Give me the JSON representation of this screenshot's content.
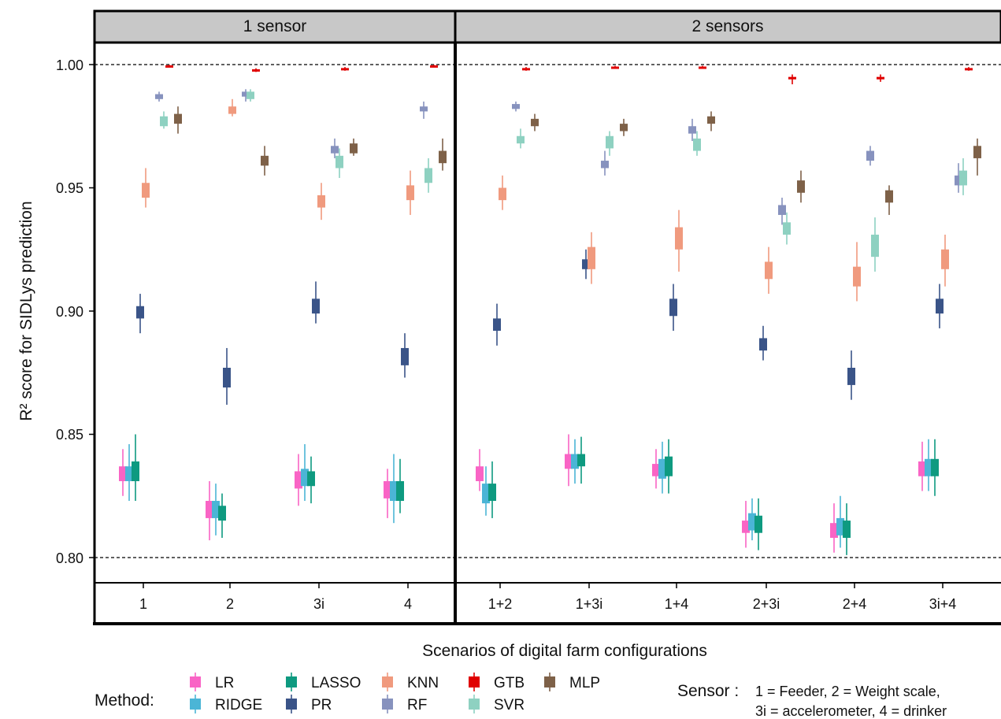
{
  "chart_data": {
    "type": "boxplot",
    "ylabel": "R² score for SIDLys prediction",
    "xlabel": "Scenarios of digital farm configurations",
    "ylim": [
      0.79,
      1.01
    ],
    "yticks": [
      "0.80",
      "0.85",
      "0.90",
      "0.95",
      "1.00"
    ],
    "reference_lines": [
      0.8,
      1.0
    ],
    "panels": [
      {
        "title": "1 sensor",
        "categories": [
          "1",
          "2",
          "3i",
          "4"
        ]
      },
      {
        "title": "2 sensors",
        "categories": [
          "1+2",
          "1+3i",
          "1+4",
          "2+3i",
          "2+4",
          "3i+4"
        ]
      }
    ],
    "methods": [
      {
        "name": "LR",
        "color": "#F964C5"
      },
      {
        "name": "RIDGE",
        "color": "#4BB5D6"
      },
      {
        "name": "LASSO",
        "color": "#0E9A80"
      },
      {
        "name": "PR",
        "color": "#3A5488"
      },
      {
        "name": "KNN",
        "color": "#F09A7E"
      },
      {
        "name": "RF",
        "color": "#8792BE"
      },
      {
        "name": "GTB",
        "color": "#E00000"
      },
      {
        "name": "SVR",
        "color": "#8ED1C1"
      },
      {
        "name": "MLP",
        "color": "#7E6148"
      }
    ],
    "series": {
      "LR": [
        [
          0.825,
          0.831,
          0.834,
          0.837,
          0.844
        ],
        [
          0.807,
          0.816,
          0.819,
          0.823,
          0.831
        ],
        [
          0.821,
          0.828,
          0.832,
          0.835,
          0.842
        ],
        [
          0.816,
          0.824,
          0.827,
          0.831,
          0.836
        ],
        [
          0.827,
          0.831,
          0.834,
          0.837,
          0.844
        ],
        [
          0.829,
          0.836,
          0.839,
          0.842,
          0.85
        ],
        [
          0.828,
          0.833,
          0.836,
          0.838,
          0.844
        ],
        [
          0.804,
          0.81,
          0.813,
          0.815,
          0.823
        ],
        [
          0.802,
          0.808,
          0.811,
          0.814,
          0.822
        ],
        [
          0.827,
          0.833,
          0.836,
          0.839,
          0.847
        ]
      ],
      "RIDGE": [
        [
          0.823,
          0.831,
          0.834,
          0.837,
          0.846
        ],
        [
          0.809,
          0.816,
          0.819,
          0.823,
          0.83
        ],
        [
          0.823,
          0.829,
          0.832,
          0.836,
          0.846
        ],
        [
          0.814,
          0.823,
          0.827,
          0.831,
          0.842
        ],
        [
          0.817,
          0.822,
          0.826,
          0.83,
          0.837
        ],
        [
          0.83,
          0.836,
          0.839,
          0.842,
          0.848
        ],
        [
          0.826,
          0.832,
          0.836,
          0.84,
          0.847
        ],
        [
          0.807,
          0.811,
          0.814,
          0.818,
          0.824
        ],
        [
          0.804,
          0.809,
          0.812,
          0.816,
          0.825
        ],
        [
          0.827,
          0.833,
          0.836,
          0.84,
          0.848
        ]
      ],
      "LASSO": [
        [
          0.823,
          0.831,
          0.834,
          0.839,
          0.85
        ],
        [
          0.808,
          0.815,
          0.819,
          0.821,
          0.826
        ],
        [
          0.822,
          0.829,
          0.832,
          0.835,
          0.841
        ],
        [
          0.818,
          0.823,
          0.827,
          0.831,
          0.84
        ],
        [
          0.816,
          0.823,
          0.826,
          0.83,
          0.839
        ],
        [
          0.83,
          0.837,
          0.839,
          0.842,
          0.849
        ],
        [
          0.826,
          0.833,
          0.836,
          0.841,
          0.848
        ],
        [
          0.803,
          0.81,
          0.813,
          0.817,
          0.824
        ],
        [
          0.801,
          0.808,
          0.811,
          0.815,
          0.822
        ],
        [
          0.825,
          0.833,
          0.836,
          0.84,
          0.848
        ]
      ],
      "PR": [
        [
          0.891,
          0.897,
          0.899,
          0.902,
          0.907
        ],
        [
          0.862,
          0.869,
          0.873,
          0.877,
          0.885
        ],
        [
          0.895,
          0.899,
          0.902,
          0.905,
          0.912
        ],
        [
          0.873,
          0.878,
          0.881,
          0.885,
          0.891
        ],
        [
          0.886,
          0.892,
          0.895,
          0.897,
          0.903
        ],
        [
          0.913,
          0.917,
          0.919,
          0.921,
          0.925
        ],
        [
          0.892,
          0.898,
          0.901,
          0.905,
          0.911
        ],
        [
          0.88,
          0.884,
          0.886,
          0.889,
          0.894
        ],
        [
          0.864,
          0.87,
          0.873,
          0.877,
          0.884
        ],
        [
          0.893,
          0.899,
          0.902,
          0.905,
          0.911
        ]
      ],
      "KNN": [
        [
          0.942,
          0.946,
          0.949,
          0.952,
          0.958
        ],
        [
          0.979,
          0.98,
          0.981,
          0.983,
          0.986
        ],
        [
          0.937,
          0.942,
          0.944,
          0.947,
          0.952
        ],
        [
          0.939,
          0.945,
          0.948,
          0.951,
          0.957
        ],
        [
          0.941,
          0.945,
          0.947,
          0.95,
          0.955
        ],
        [
          0.911,
          0.917,
          0.921,
          0.926,
          0.932
        ],
        [
          0.916,
          0.925,
          0.929,
          0.934,
          0.941
        ],
        [
          0.907,
          0.913,
          0.916,
          0.92,
          0.926
        ],
        [
          0.904,
          0.91,
          0.914,
          0.918,
          0.928
        ],
        [
          0.91,
          0.917,
          0.921,
          0.925,
          0.931
        ]
      ],
      "RF": [
        [
          0.985,
          0.986,
          0.987,
          0.988,
          0.989
        ],
        [
          0.985,
          0.987,
          0.988,
          0.989,
          0.99
        ],
        [
          0.962,
          0.964,
          0.966,
          0.967,
          0.97
        ],
        [
          0.978,
          0.981,
          0.982,
          0.983,
          0.985
        ],
        [
          0.981,
          0.982,
          0.983,
          0.984,
          0.985
        ],
        [
          0.955,
          0.958,
          0.96,
          0.961,
          0.965
        ],
        [
          0.969,
          0.972,
          0.974,
          0.975,
          0.978
        ],
        [
          0.935,
          0.939,
          0.941,
          0.943,
          0.946
        ],
        [
          0.959,
          0.961,
          0.963,
          0.965,
          0.967
        ],
        [
          0.948,
          0.951,
          0.953,
          0.955,
          0.96
        ]
      ],
      "GTB": [
        [
          0.999,
          0.9993,
          0.9995,
          0.9997,
          0.9999
        ],
        [
          0.997,
          0.9975,
          0.9978,
          0.9981,
          0.9985
        ],
        [
          0.9975,
          0.998,
          0.9983,
          0.9986,
          0.999
        ],
        [
          0.999,
          0.9993,
          0.9995,
          0.9997,
          0.9999
        ],
        [
          0.9975,
          0.998,
          0.9983,
          0.9986,
          0.999
        ],
        [
          0.9985,
          0.9988,
          0.999,
          0.9992,
          0.9995
        ],
        [
          0.9985,
          0.9988,
          0.999,
          0.9992,
          0.9995
        ],
        [
          0.992,
          0.994,
          0.9945,
          0.995,
          0.996
        ],
        [
          0.993,
          0.994,
          0.9945,
          0.995,
          0.996
        ],
        [
          0.9975,
          0.998,
          0.9983,
          0.9986,
          0.999
        ]
      ],
      "SVR": [
        [
          0.974,
          0.975,
          0.977,
          0.979,
          0.981
        ],
        [
          0.985,
          0.986,
          0.988,
          0.989,
          0.99
        ],
        [
          0.954,
          0.958,
          0.961,
          0.963,
          0.966
        ],
        [
          0.948,
          0.952,
          0.955,
          0.958,
          0.962
        ],
        [
          0.966,
          0.968,
          0.97,
          0.971,
          0.974
        ],
        [
          0.963,
          0.966,
          0.969,
          0.971,
          0.973
        ],
        [
          0.963,
          0.965,
          0.967,
          0.97,
          0.973
        ],
        [
          0.927,
          0.931,
          0.934,
          0.936,
          0.94
        ],
        [
          0.916,
          0.922,
          0.927,
          0.931,
          0.938
        ],
        [
          0.947,
          0.951,
          0.954,
          0.957,
          0.962
        ]
      ],
      "MLP": [
        [
          0.972,
          0.976,
          0.978,
          0.98,
          0.983
        ],
        [
          0.955,
          0.959,
          0.961,
          0.963,
          0.967
        ],
        [
          0.963,
          0.964,
          0.966,
          0.968,
          0.97
        ],
        [
          0.957,
          0.96,
          0.963,
          0.965,
          0.97
        ],
        [
          0.973,
          0.975,
          0.976,
          0.978,
          0.98
        ],
        [
          0.971,
          0.973,
          0.975,
          0.976,
          0.978
        ],
        [
          0.973,
          0.976,
          0.977,
          0.979,
          0.981
        ],
        [
          0.944,
          0.948,
          0.951,
          0.953,
          0.957
        ],
        [
          0.939,
          0.944,
          0.946,
          0.949,
          0.951
        ],
        [
          0.955,
          0.962,
          0.964,
          0.967,
          0.97
        ]
      ]
    }
  },
  "legend": {
    "title": "Method:",
    "sensor_title": "Sensor :",
    "sensor_line1": "1 = Feeder, 2 = Weight scale,",
    "sensor_line2": "3i = accelerometer, 4 = drinker"
  }
}
